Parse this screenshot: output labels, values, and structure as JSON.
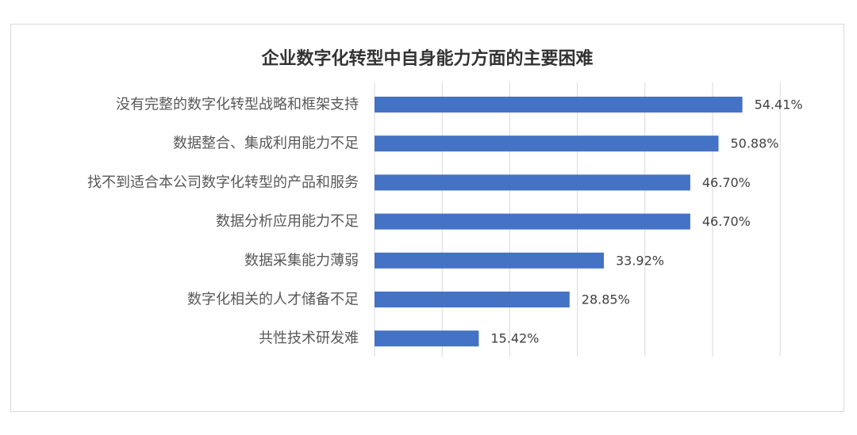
{
  "chart_data": {
    "type": "bar",
    "orientation": "horizontal",
    "title": "企业数字化转型中自身能力方面的主要困难",
    "categories": [
      "没有完整的数字化转型战略和框架支持",
      "数据整合、集成利用能力不足",
      "找不到适合本公司数字化转型的产品和服务",
      "数据分析应用能力不足",
      "数据采集能力薄弱",
      "数字化相关的人才储备不足",
      "共性技术研发难"
    ],
    "values": [
      54.41,
      50.88,
      46.7,
      46.7,
      33.92,
      28.85,
      15.42
    ],
    "value_labels": [
      "54.41%",
      "50.88%",
      "46.70%",
      "46.70%",
      "33.92%",
      "28.85%",
      "15.42%"
    ],
    "xlim": [
      0,
      60
    ],
    "x_grid_step": 10,
    "grid": true,
    "legend": "none",
    "bar_color": "#4472c4",
    "grid_color": "#d9d9d9"
  }
}
